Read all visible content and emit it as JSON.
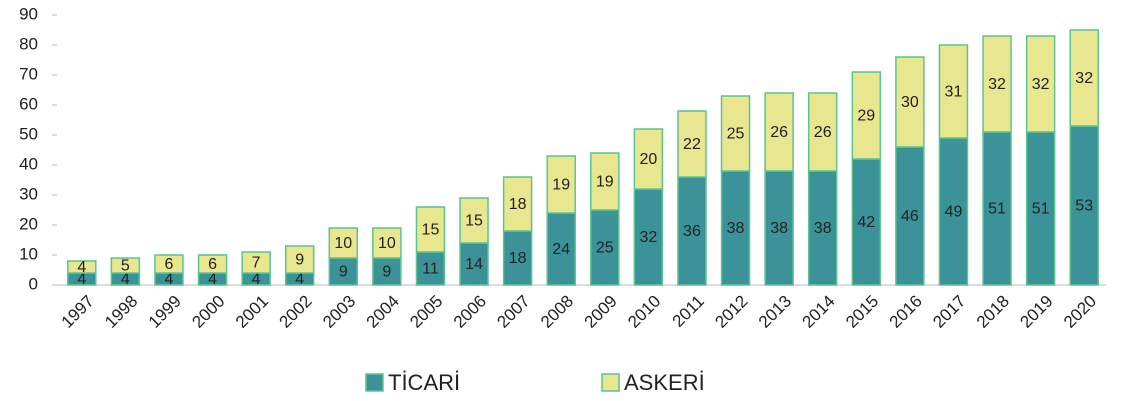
{
  "chart_data": {
    "type": "stacked_bar",
    "categories": [
      "1997",
      "1998",
      "1999",
      "2000",
      "2001",
      "2002",
      "2003",
      "2004",
      "2005",
      "2006",
      "2007",
      "2008",
      "2009",
      "2010",
      "2011",
      "2012",
      "2013",
      "2014",
      "2015",
      "2016",
      "2017",
      "2018",
      "2019",
      "2020"
    ],
    "series": [
      {
        "name": "TİCARİ",
        "color": "#3b9399",
        "values": [
          4,
          4,
          4,
          4,
          4,
          4,
          9,
          9,
          11,
          14,
          18,
          24,
          25,
          32,
          36,
          38,
          38,
          38,
          42,
          46,
          49,
          51,
          51,
          53
        ]
      },
      {
        "name": "ASKERİ",
        "color": "#e9e690",
        "values": [
          4,
          5,
          6,
          6,
          7,
          9,
          10,
          10,
          15,
          15,
          18,
          19,
          19,
          20,
          22,
          25,
          26,
          26,
          29,
          30,
          31,
          32,
          32,
          32
        ]
      }
    ],
    "ylim": [
      0,
      90
    ],
    "yticks": [
      0,
      10,
      20,
      30,
      40,
      50,
      60,
      70,
      80,
      90
    ],
    "grid": false
  }
}
